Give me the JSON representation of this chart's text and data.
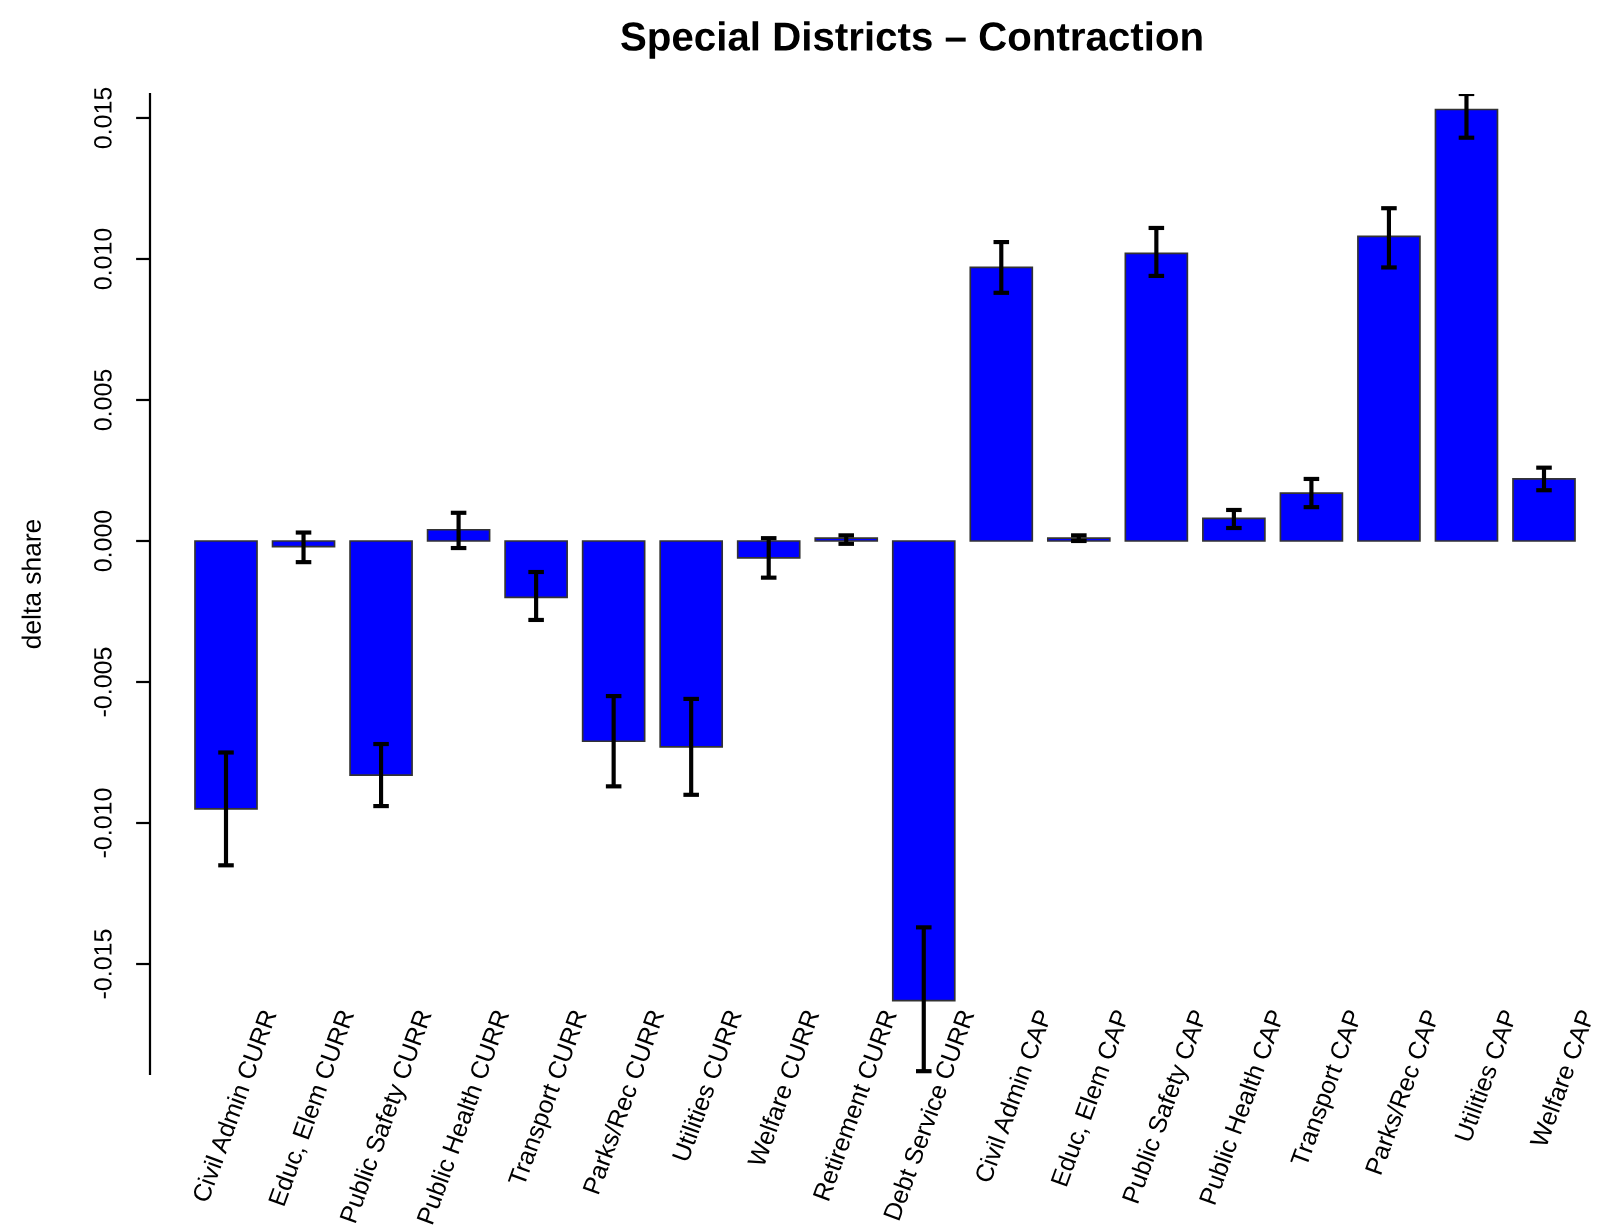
{
  "chart_data": {
    "type": "bar",
    "title": "Special Districts – Contraction",
    "ylabel": "delta share",
    "categories": [
      "Civil Admin CURR",
      "Educ, Elem CURR",
      "Public Safety CURR",
      "Public Health CURR",
      "Transport CURR",
      "Parks/Rec CURR",
      "Utilities CURR",
      "Welfare CURR",
      "Retirement CURR",
      "Debt Service CURR",
      "Civil Admin CAP",
      "Educ, Elem CAP",
      "Public Safety CAP",
      "Public Health CAP",
      "Transport CAP",
      "Parks/Rec CAP",
      "Utilities CAP",
      "Welfare CAP"
    ],
    "values": [
      -0.0095,
      -0.0002,
      -0.0083,
      0.0004,
      -0.002,
      -0.0071,
      -0.0073,
      -0.0006,
      0.0001,
      -0.0163,
      0.0097,
      0.0001,
      0.0102,
      0.0008,
      0.0017,
      0.0108,
      0.0153,
      0.0022
    ],
    "errors": [
      [
        -0.0115,
        -0.0075
      ],
      [
        -0.00075,
        0.0003
      ],
      [
        -0.0094,
        -0.0072
      ],
      [
        -0.00025,
        0.001
      ],
      [
        -0.0028,
        -0.0011
      ],
      [
        -0.0087,
        -0.0055
      ],
      [
        -0.009,
        -0.0056
      ],
      [
        -0.0013,
        0.0001
      ],
      [
        -0.0001,
        0.0002
      ],
      [
        -0.0188,
        -0.0137
      ],
      [
        0.0088,
        0.0106
      ],
      [
        0.0,
        0.0002
      ],
      [
        0.0094,
        0.0111
      ],
      [
        0.00046,
        0.0011
      ],
      [
        0.0012,
        0.0022
      ],
      [
        0.0097,
        0.0118
      ],
      [
        0.0143,
        0.01585
      ],
      [
        0.0018,
        0.0026
      ]
    ],
    "color": "#0000ff",
    "ylim": [
      -0.0189,
      0.01585
    ],
    "yticks": [
      {
        "value": -0.015,
        "label": "-0.015"
      },
      {
        "value": -0.01,
        "label": "-0.010"
      },
      {
        "value": -0.005,
        "label": "-0.005"
      },
      {
        "value": 0,
        "label": "0.000"
      },
      {
        "value": 0.005,
        "label": "0.005"
      },
      {
        "value": 0.01,
        "label": "0.010"
      },
      {
        "value": 0.015,
        "label": "0.015"
      }
    ]
  }
}
